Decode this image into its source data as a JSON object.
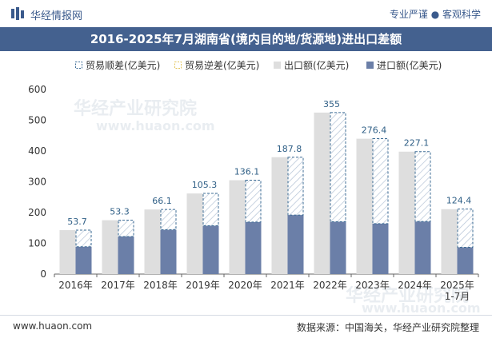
{
  "header": {
    "brand": "华经情报网",
    "tagline": "专业严谨 ● 客观科学"
  },
  "title": "2016-2025年7月湖南省(境内目的地/货源地)进出口差额",
  "legend": [
    {
      "label": "贸易顺差(亿美元)",
      "style": "surplus"
    },
    {
      "label": "贸易逆差(亿美元)",
      "style": "deficit"
    },
    {
      "label": "出口额(亿美元)",
      "style": "export"
    },
    {
      "label": "进口额(亿美元)",
      "style": "import"
    }
  ],
  "chart_data": {
    "type": "bar",
    "categories": [
      "2016年",
      "2017年",
      "2018年",
      "2019年",
      "2020年",
      "2021年",
      "2022年",
      "2023年",
      "2024年",
      "2025年\n1-7月"
    ],
    "series": [
      {
        "name": "出口额(亿美元)",
        "values": [
          143,
          175,
          210,
          262,
          305,
          380,
          525,
          440,
          398,
          211
        ]
      },
      {
        "name": "进口额(亿美元)",
        "values": [
          89,
          122,
          144,
          157,
          169,
          192,
          170,
          164,
          171,
          87
        ]
      },
      {
        "name": "贸易顺差(亿美元)",
        "values": [
          53.7,
          53.3,
          66.1,
          105.3,
          136.1,
          187.8,
          355,
          276.4,
          227.1,
          124.4
        ]
      }
    ],
    "data_labels": [
      "53.7",
      "53.3",
      "66.1",
      "105.3",
      "136.1",
      "187.8",
      "355",
      "276.4",
      "227.1",
      "124.4"
    ],
    "ylim": [
      0,
      600
    ],
    "yticks": [
      0,
      100,
      200,
      300,
      400,
      500,
      600
    ],
    "grid": false,
    "legend_position": "top",
    "colors": {
      "export": "#dedede",
      "import": "#6b7fa8",
      "surplus": "#3e6d96",
      "deficit": "#e3c45a"
    }
  },
  "watermarks": [
    "华经产业研究院",
    "www.huaon.com",
    "华经产业研究院",
    "www.huaon.com"
  ],
  "footer": {
    "site": "www.huaon.com",
    "source": "数据来源：中国海关，华经产业研究院整理"
  }
}
